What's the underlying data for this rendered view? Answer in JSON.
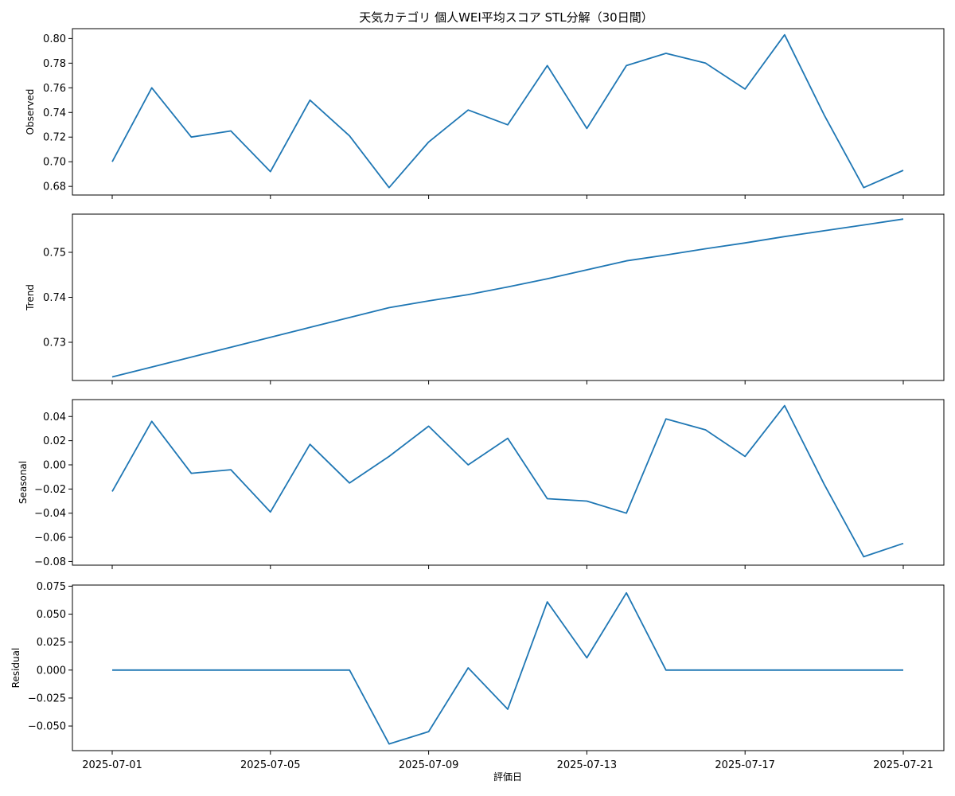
{
  "chart_data": {
    "type": "line",
    "title": "天気カテゴリ 個人WEI平均スコア STL分解（30日間）",
    "xlabel": "評価日",
    "line_color": "#1f77b4",
    "x": [
      "2025-07-01",
      "2025-07-02",
      "2025-07-03",
      "2025-07-04",
      "2025-07-05",
      "2025-07-06",
      "2025-07-07",
      "2025-07-08",
      "2025-07-09",
      "2025-07-10",
      "2025-07-11",
      "2025-07-12",
      "2025-07-13",
      "2025-07-14",
      "2025-07-15",
      "2025-07-16",
      "2025-07-17",
      "2025-07-18",
      "2025-07-19",
      "2025-07-20",
      "2025-07-21"
    ],
    "x_tick_labels": [
      "2025-07-01",
      "2025-07-05",
      "2025-07-09",
      "2025-07-13",
      "2025-07-17",
      "2025-07-21"
    ],
    "panels": [
      {
        "name": "Observed",
        "ylabel": "Observed",
        "ylim": [
          0.673,
          0.808
        ],
        "yticks": [
          0.68,
          0.7,
          0.72,
          0.74,
          0.76,
          0.78,
          0.8
        ],
        "ytick_labels": [
          "0.68",
          "0.70",
          "0.72",
          "0.74",
          "0.76",
          "0.78",
          "0.80"
        ],
        "values": [
          0.7,
          0.76,
          0.72,
          0.725,
          0.692,
          0.75,
          0.721,
          0.679,
          0.716,
          0.742,
          0.73,
          0.778,
          0.727,
          0.778,
          0.788,
          0.78,
          0.759,
          0.803,
          0.738,
          0.679,
          0.693
        ]
      },
      {
        "name": "Trend",
        "ylabel": "Trend",
        "ylim": [
          0.7215,
          0.7585
        ],
        "yticks": [
          0.73,
          0.74,
          0.75
        ],
        "ytick_labels": [
          "0.73",
          "0.74",
          "0.75"
        ],
        "values": [
          0.7223,
          0.7245,
          0.7267,
          0.7289,
          0.7311,
          0.7333,
          0.7355,
          0.7377,
          0.7392,
          0.7406,
          0.7423,
          0.7441,
          0.7461,
          0.7481,
          0.7494,
          0.7508,
          0.7521,
          0.7535,
          0.7548,
          0.7561,
          0.7574
        ]
      },
      {
        "name": "Seasonal",
        "ylabel": "Seasonal",
        "ylim": [
          -0.083,
          0.054
        ],
        "yticks": [
          -0.08,
          -0.06,
          -0.04,
          -0.02,
          0.0,
          0.02,
          0.04
        ],
        "ytick_labels": [
          "−0.08",
          "−0.06",
          "−0.04",
          "−0.02",
          "0.00",
          "0.02",
          "0.04"
        ],
        "values": [
          -0.022,
          0.036,
          -0.007,
          -0.004,
          -0.039,
          0.017,
          -0.015,
          0.007,
          0.032,
          -0.0,
          0.022,
          -0.028,
          -0.03,
          -0.04,
          0.038,
          0.029,
          0.007,
          0.049,
          -0.016,
          -0.076,
          -0.065
        ]
      },
      {
        "name": "Residual",
        "ylabel": "Residual",
        "ylim": [
          -0.072,
          0.076
        ],
        "yticks": [
          -0.05,
          -0.025,
          0.0,
          0.025,
          0.05,
          0.075
        ],
        "ytick_labels": [
          "−0.050",
          "−0.025",
          "0.000",
          "0.025",
          "0.050",
          "0.075"
        ],
        "values": [
          0.0,
          0.0,
          0.0,
          0.0,
          0.0,
          0.0,
          0.0,
          -0.066,
          -0.055,
          0.002,
          -0.035,
          0.061,
          0.011,
          0.069,
          0.0,
          0.0,
          0.0,
          0.0,
          0.0,
          0.0,
          0.0
        ]
      }
    ]
  }
}
